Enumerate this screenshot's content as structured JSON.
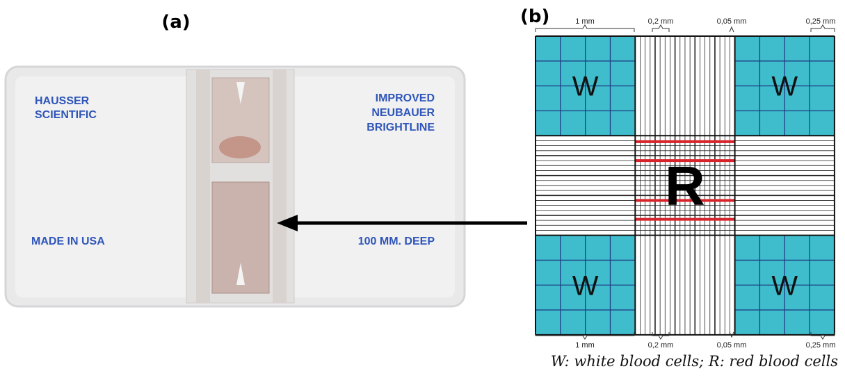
{
  "panel_a": {
    "label": "(a)",
    "slide": {
      "maker": [
        "HAUSSER",
        "SCIENTIFIC"
      ],
      "model": [
        "IMPROVED",
        "NEUBAUER",
        "BRIGHTLINE"
      ],
      "origin": "MADE IN USA",
      "depth": "100 MM. DEEP"
    }
  },
  "panel_b": {
    "label": "(b)",
    "top_dimensions": [
      "1 mm",
      "0,2 mm",
      "0,05 mm",
      "0,25 mm"
    ],
    "bottom_dimensions": [
      "1 mm",
      "0,2 mm",
      "0,05 mm",
      "0,25 mm"
    ],
    "wbc_squares": [
      "W",
      "W",
      "W",
      "W"
    ],
    "rbc_square": "R",
    "caption": "W: white blood cells; R: red blood cells"
  }
}
